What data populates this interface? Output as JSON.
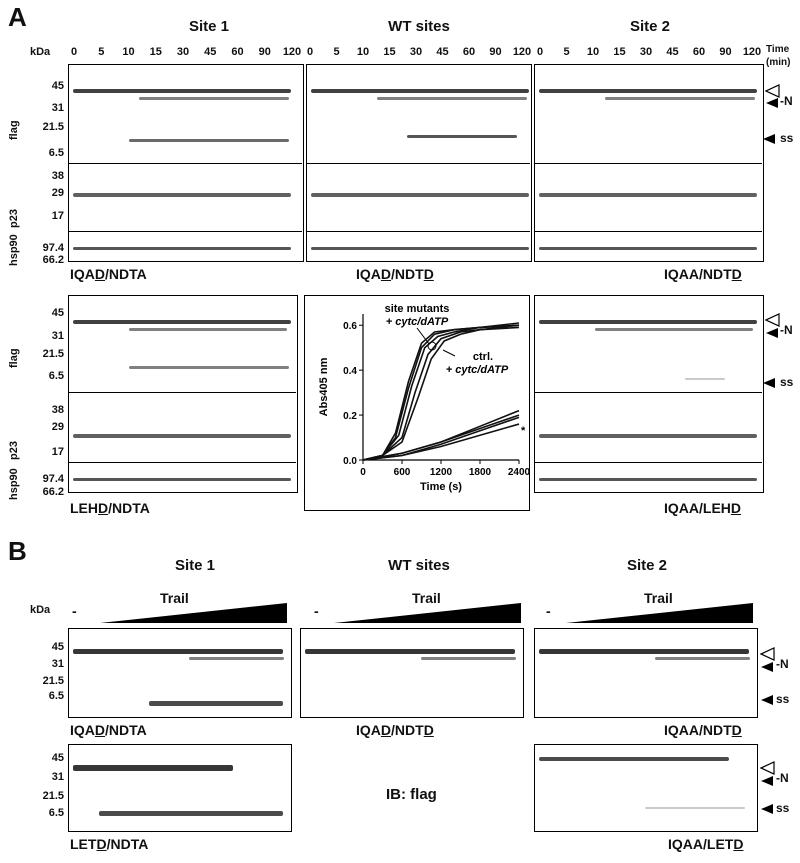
{
  "panelA": {
    "letter": "A",
    "col_titles": [
      "Site 1",
      "WT sites",
      "Site 2"
    ],
    "kda": "kDa",
    "time_label": "Time",
    "time_unit": "(min)",
    "lanes": [
      "0",
      "5",
      "10",
      "15",
      "30",
      "45",
      "60",
      "90",
      "120"
    ],
    "mw_flag": [
      "45",
      "31",
      "21.5",
      "6.5"
    ],
    "mw_p23": [
      "38",
      "29",
      "17"
    ],
    "mw_hsp": [
      "97.4",
      "66.2"
    ],
    "row_labels": {
      "flag": "flag",
      "p23": "p23",
      "hsp90": "hsp90"
    },
    "constructs_top": [
      {
        "pre": "IQA",
        "u": "D",
        "post": "/NDTA",
        "u2": "",
        "post2": ""
      },
      {
        "pre": "IQA",
        "u": "D",
        "post": "/NDT",
        "u2": "D",
        "post2": ""
      },
      {
        "pre": "IQAA/NDT",
        "u": "D",
        "post": "",
        "u2": "",
        "post2": ""
      }
    ],
    "constructs_bottom": [
      {
        "pre": "LEH",
        "u": "D",
        "post": "/NDTA"
      },
      {
        "pre": "IQAA/LEH",
        "u": "D",
        "post": ""
      }
    ],
    "markers": {
      "neg_n": "-N",
      "ss": "ss"
    }
  },
  "inset_chart": {
    "annotation_mutants_1": "site mutants",
    "annotation_mutants_2": "+ cytc/dATP",
    "annotation_ctrl_1": "ctrl.",
    "annotation_ctrl_2": "+ cytc/dATP",
    "asterisk": "*"
  },
  "chart_data": {
    "type": "line",
    "xlabel": "Time (s)",
    "ylabel": "Abs405 nm",
    "xlim": [
      0,
      2400
    ],
    "ylim": [
      0,
      0.65
    ],
    "xticks": [
      "0",
      "600",
      "1200",
      "1800",
      "2400"
    ],
    "yticks": [
      "0.0",
      "0.2",
      "0.4",
      "0.6"
    ],
    "series": [
      {
        "group": "fast",
        "x": [
          0,
          300,
          500,
          700,
          900,
          1100,
          1400,
          1800,
          2400
        ],
        "y": [
          0.0,
          0.02,
          0.12,
          0.35,
          0.52,
          0.57,
          0.58,
          0.59,
          0.6
        ]
      },
      {
        "group": "fast",
        "x": [
          0,
          300,
          500,
          700,
          900,
          1100,
          1400,
          1800,
          2400
        ],
        "y": [
          0.0,
          0.02,
          0.1,
          0.32,
          0.5,
          0.56,
          0.58,
          0.59,
          0.61
        ]
      },
      {
        "group": "fast",
        "x": [
          0,
          300,
          550,
          750,
          950,
          1150,
          1400,
          1800,
          2400
        ],
        "y": [
          0.0,
          0.02,
          0.11,
          0.33,
          0.5,
          0.55,
          0.57,
          0.59,
          0.6
        ]
      },
      {
        "group": "fast",
        "x": [
          0,
          300,
          600,
          800,
          1000,
          1200,
          1500,
          1800,
          2400
        ],
        "y": [
          0.0,
          0.02,
          0.1,
          0.3,
          0.47,
          0.54,
          0.57,
          0.58,
          0.6
        ]
      },
      {
        "group": "fast",
        "x": [
          0,
          300,
          600,
          850,
          1050,
          1250,
          1500,
          1800,
          2400
        ],
        "y": [
          0.0,
          0.02,
          0.08,
          0.28,
          0.45,
          0.53,
          0.56,
          0.58,
          0.59
        ]
      },
      {
        "group": "slow",
        "x": [
          0,
          600,
          1200,
          1800,
          2400
        ],
        "y": [
          0.0,
          0.03,
          0.08,
          0.15,
          0.22
        ]
      },
      {
        "group": "slow",
        "x": [
          0,
          600,
          1200,
          1800,
          2400
        ],
        "y": [
          0.0,
          0.03,
          0.08,
          0.14,
          0.2
        ]
      },
      {
        "group": "slow",
        "x": [
          0,
          600,
          1200,
          1800,
          2400
        ],
        "y": [
          0.0,
          0.02,
          0.07,
          0.13,
          0.19
        ]
      },
      {
        "group": "slow",
        "x": [
          0,
          600,
          1200,
          1800,
          2400
        ],
        "y": [
          0.0,
          0.02,
          0.06,
          0.11,
          0.16
        ]
      }
    ]
  },
  "panelB": {
    "letter": "B",
    "col_titles": [
      "Site 1",
      "WT sites",
      "Site 2"
    ],
    "kda": "kDa",
    "minus": "-",
    "trail": "Trail",
    "mw": [
      "45",
      "31",
      "21.5",
      "6.5"
    ],
    "constructs_top": [
      {
        "pre": "IQA",
        "u": "D",
        "post": "/NDTA",
        "u2": "",
        "post2": ""
      },
      {
        "pre": "IQA",
        "u": "D",
        "post": "/NDT",
        "u2": "D",
        "post2": ""
      },
      {
        "pre": "IQAA/NDT",
        "u": "D",
        "post": "",
        "u2": "",
        "post2": ""
      }
    ],
    "constructs_bottom": [
      {
        "pre": "LET",
        "u": "D",
        "post": "/NDTA"
      },
      {
        "pre": "IQAA/LET",
        "u": "D",
        "post": ""
      }
    ],
    "ib_label": "IB: flag",
    "markers": {
      "neg_n": "-N",
      "ss": "ss"
    }
  }
}
